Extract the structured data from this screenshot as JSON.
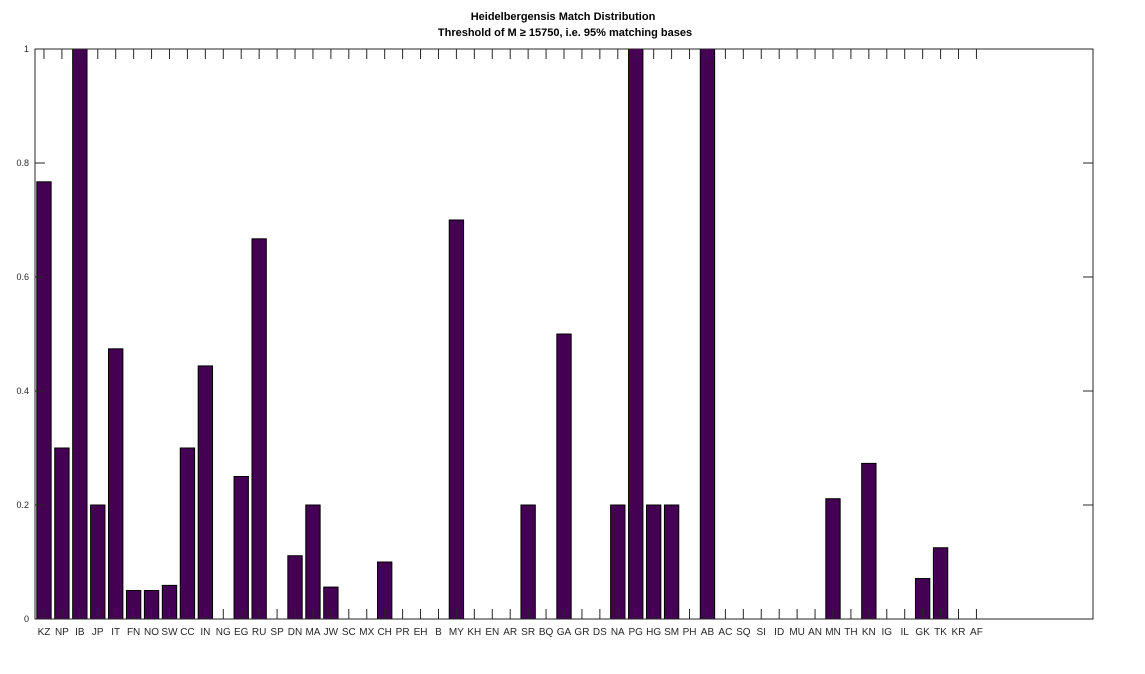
{
  "chart_data": {
    "type": "bar",
    "title": "Heidelbergensis Match Distribution",
    "subtitle": "Threshold of M ≥ 15750, i.e. 95% matching bases",
    "xlabel": "",
    "ylabel": "",
    "ylim": [
      0,
      1
    ],
    "yticks": [
      "0",
      "0.2",
      "0.4",
      "0.6",
      "0.8",
      "1"
    ],
    "ytick_values": [
      0,
      0.2,
      0.4,
      0.6,
      0.8,
      1
    ],
    "grid": false,
    "bar_color": "#440154",
    "categories": [
      "KZ",
      "NP",
      "IB",
      "JP",
      "IT",
      "FN",
      "NO",
      "SW",
      "CC",
      "IN",
      "NG",
      "EG",
      "RU",
      "SP",
      "DN",
      "MA",
      "JW",
      "SC",
      "MX",
      "CH",
      "PR",
      "EH",
      "B",
      "MY",
      "KH",
      "EN",
      "AR",
      "SR",
      "BQ",
      "GA",
      "GR",
      "DS",
      "NA",
      "PG",
      "HG",
      "SM",
      "PH",
      "AB",
      "AC",
      "SQ",
      "SI",
      "ID",
      "MU",
      "AN",
      "MN",
      "TH",
      "KN",
      "IG",
      "IL",
      "GK",
      "TK",
      "KR",
      "AF"
    ],
    "values": [
      0.767,
      0.3,
      1,
      0.2,
      0.474,
      0.05,
      0.05,
      0.059,
      0.3,
      0.444,
      0,
      0.25,
      0.667,
      0,
      0.111,
      0.2,
      0.056,
      0,
      0,
      0.1,
      0,
      0,
      0,
      0.7,
      0,
      0,
      0,
      0.2,
      0,
      0.5,
      0,
      0,
      0.2,
      1,
      0.2,
      0.2,
      0,
      1,
      0,
      0,
      0,
      0,
      0,
      0,
      0.211,
      0,
      0.273,
      0,
      0,
      0.071,
      0.125,
      0,
      0
    ],
    "total_slots": 59
  }
}
